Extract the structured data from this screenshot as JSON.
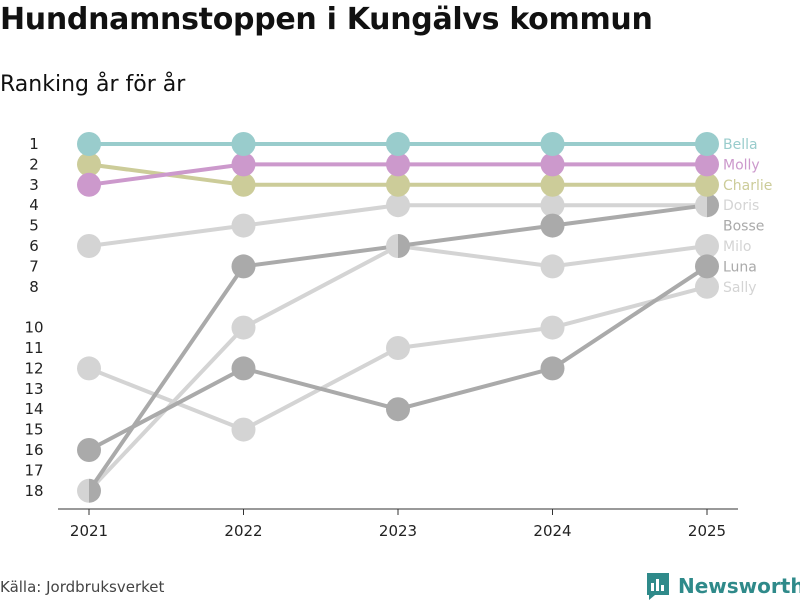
{
  "chart_data": {
    "type": "line",
    "title": "Hundnamnstoppen i Kungälvs kommun",
    "subtitle": "Ranking år för år",
    "xlabel": "",
    "ylabel": "",
    "x": [
      "2021",
      "2022",
      "2023",
      "2024",
      "2025"
    ],
    "y_ticks": [
      "1",
      "2",
      "3",
      "4",
      "5",
      "6",
      "7",
      "8",
      "10",
      "11",
      "12",
      "13",
      "14",
      "15",
      "16",
      "17",
      "18"
    ],
    "series": [
      {
        "name": "Sally",
        "color": "#d4d4d4",
        "values": [
          12,
          15,
          11,
          10,
          8
        ]
      },
      {
        "name": "Milo",
        "color": "#d4d4d4",
        "values": [
          18,
          10,
          6,
          7,
          6
        ]
      },
      {
        "name": "Doris",
        "color": "#d4d4d4",
        "values": [
          6,
          5,
          4,
          4,
          4
        ]
      },
      {
        "name": "Luna",
        "color": "#aaaaaa",
        "values": [
          16,
          12,
          14,
          12,
          7
        ]
      },
      {
        "name": "Bosse",
        "color": "#aaaaaa",
        "values": [
          18,
          7,
          6,
          5,
          4
        ]
      },
      {
        "name": "Charlie",
        "color": "#cccc99",
        "values": [
          2,
          3,
          3,
          3,
          3
        ]
      },
      {
        "name": "Molly",
        "color": "#cc99cc",
        "values": [
          3,
          2,
          2,
          2,
          2
        ]
      },
      {
        "name": "Bella",
        "color": "#99cccc",
        "values": [
          1,
          1,
          1,
          1,
          1
        ]
      }
    ],
    "end_labels": [
      {
        "name": "Bella",
        "rank": 1,
        "color": "#99cccc"
      },
      {
        "name": "Molly",
        "rank": 2,
        "color": "#cc99cc"
      },
      {
        "name": "Charlie",
        "rank": 3,
        "color": "#cccc99"
      },
      {
        "name": "Doris",
        "rank": 4,
        "color": "#d4d4d4"
      },
      {
        "name": "Bosse",
        "rank": 5,
        "color": "#aaaaaa"
      },
      {
        "name": "Milo",
        "rank": 6,
        "color": "#d4d4d4"
      },
      {
        "name": "Luna",
        "rank": 7,
        "color": "#aaaaaa"
      },
      {
        "name": "Sally",
        "rank": 8,
        "color": "#d4d4d4"
      }
    ],
    "half_markers": [
      {
        "series": [
          "Milo",
          "Bosse"
        ],
        "year": "2021"
      },
      {
        "series": [
          "Milo",
          "Bosse"
        ],
        "year": "2023"
      },
      {
        "series": [
          "Doris",
          "Bosse"
        ],
        "year": "2025"
      }
    ],
    "ylim": [
      1,
      18
    ]
  },
  "footer": {
    "source": "Källa: Jordbruksverket",
    "brand": "Newsworthy"
  }
}
